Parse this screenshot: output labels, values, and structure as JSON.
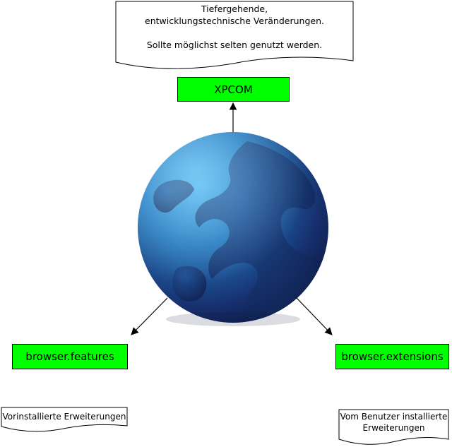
{
  "colors": {
    "box_fill": "#00ff00",
    "globe_dark": "#0f1d4c",
    "globe_light": "#2f8fd0",
    "outline": "#000000"
  },
  "top_note": {
    "lines": [
      "Tiefergehende,",
      "entwicklungstechnische Veränderungen.",
      "",
      "Sollte möglichst selten genutzt werden."
    ]
  },
  "boxes": {
    "xpcom": "XPCOM",
    "features": "browser.features",
    "extensions": "browser.extensions"
  },
  "center_image": "firefox-globe-icon",
  "bottom_left_note": {
    "lines": [
      "Vorinstallierte Erweiterungen"
    ]
  },
  "bottom_right_note": {
    "lines": [
      "Vom Benutzer installierte",
      "Erweiterungen"
    ]
  }
}
